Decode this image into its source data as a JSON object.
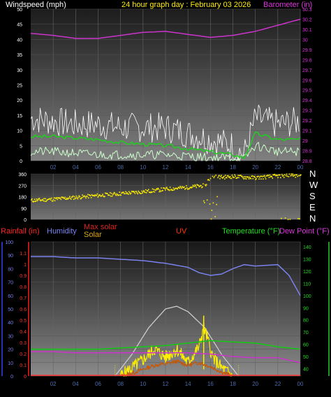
{
  "header": {
    "wind_label": "Windspeed (mph)",
    "title": "24 hour graph day : February 03 2026",
    "baro_label": "Barometer (in)"
  },
  "compass": [
    "N",
    "W",
    "S",
    "E",
    "N"
  ],
  "bottom_labels": {
    "rain": "Rainfall (in)",
    "humidity": "Humidity",
    "max_solar": "Max solar",
    "solar": "Solar",
    "uv": "UV",
    "temperature": "Temperature (°F)",
    "dewpoint": "Dew Point (°F)"
  },
  "colors": {
    "wind_gust": "#ffffff",
    "wind_avg": "#22cc22",
    "wind_low": "#ccffcc",
    "barometer": "#cc33cc",
    "direction": "#ffee00",
    "humidity": "#7a82ee",
    "temperature": "#11cc11",
    "dewpoint": "#cc33cc",
    "max_solar": "#cccccc",
    "solar": "#ffee00",
    "uv": "#cc5500",
    "rain": "#ff3333",
    "x_tick": "#4a6aa8"
  },
  "chart_data": [
    {
      "type": "line",
      "title": "24 hour graph day : February 03 2026",
      "x_ticks": [
        "02",
        "04",
        "06",
        "08",
        "10",
        "12",
        "14",
        "16",
        "18",
        "20",
        "22",
        "00"
      ],
      "y_left_label": "Windspeed (mph)",
      "y_left_ticks": [
        0,
        5,
        10,
        15,
        20,
        25,
        30,
        35,
        40,
        45,
        50
      ],
      "y_right_label": "Barometer (in)",
      "y_right_ticks": [
        28.8,
        28.9,
        29,
        29.1,
        29.2,
        29.3,
        29.4,
        29.5,
        29.6,
        29.7,
        29.8,
        29.9,
        30,
        30.1,
        30.2,
        30.3
      ],
      "series": [
        {
          "name": "Barometer (in)",
          "axis": "right",
          "x_hours": [
            0,
            2,
            4,
            6,
            8,
            10,
            12,
            14,
            16,
            18,
            20,
            22,
            24
          ],
          "values": [
            30.06,
            30.04,
            30.01,
            30.01,
            30.04,
            30.07,
            30.08,
            30.05,
            30.02,
            30.04,
            30.08,
            30.14,
            30.2
          ]
        },
        {
          "name": "Wind gust",
          "axis": "left",
          "x_hours": [
            0,
            2,
            4,
            6,
            8,
            10,
            12,
            14,
            16,
            18,
            19,
            20,
            22,
            24
          ],
          "values": [
            14,
            13,
            12,
            12,
            11,
            11,
            11,
            9,
            7,
            5,
            2,
            14,
            12,
            13
          ]
        },
        {
          "name": "Wind speed",
          "axis": "left",
          "x_hours": [
            0,
            2,
            4,
            6,
            8,
            10,
            12,
            14,
            16,
            18,
            19,
            20,
            22,
            24
          ],
          "values": [
            8,
            8,
            7.5,
            7,
            6,
            5.5,
            5,
            4,
            3,
            2,
            1,
            9,
            7,
            7
          ]
        },
        {
          "name": "Wind low",
          "axis": "left",
          "x_hours": [
            0,
            2,
            4,
            6,
            8,
            10,
            12,
            14,
            16,
            18,
            19,
            20,
            22,
            24
          ],
          "values": [
            3,
            3,
            2.5,
            2,
            2,
            2,
            2,
            1.5,
            1,
            1,
            0.5,
            5,
            3,
            3
          ]
        }
      ]
    },
    {
      "type": "scatter",
      "title": "",
      "x_ticks": [],
      "y_ticks": [
        0,
        90,
        180,
        270,
        360
      ],
      "series": [
        {
          "name": "Wind direction",
          "x_hours": [
            0,
            2,
            4,
            6,
            8,
            10,
            12,
            14,
            15.5,
            16,
            17,
            18,
            20,
            22,
            24
          ],
          "values": [
            150,
            160,
            175,
            190,
            205,
            220,
            240,
            255,
            270,
            345,
            335,
            340,
            330,
            345,
            350
          ]
        }
      ]
    },
    {
      "type": "line",
      "title": "",
      "x_ticks": [
        "02",
        "04",
        "06",
        "08",
        "10",
        "12",
        "14",
        "16",
        "18",
        "20",
        "22",
        "00"
      ],
      "y_left_label": "Humidity",
      "y_left_ticks": [
        0,
        10,
        20,
        30,
        40,
        50,
        60,
        70,
        80,
        90,
        100
      ],
      "y_rain_label": "Rainfall (in)",
      "y_rain_ticks": [
        0,
        0.1,
        0.2,
        0.3,
        0.4,
        0.5,
        0.6,
        0.7,
        0.8,
        0.9,
        1,
        1.1
      ],
      "y_right_label": "Temperature (°F)",
      "y_right_ticks": [
        40,
        50,
        60,
        70,
        80,
        90,
        100,
        110,
        120,
        130,
        140
      ],
      "series": [
        {
          "name": "Humidity",
          "axis": "left",
          "x_hours": [
            0,
            2,
            4,
            6,
            8,
            10,
            12,
            14,
            15,
            16,
            17,
            18,
            19,
            20,
            22,
            23,
            24
          ],
          "values": [
            89,
            89,
            88,
            88,
            87,
            86,
            84,
            81,
            77,
            75,
            76,
            80,
            83,
            82,
            83,
            75,
            60
          ]
        },
        {
          "name": "Temperature (°F)",
          "axis": "right",
          "x_hours": [
            0,
            2,
            4,
            6,
            8,
            10,
            12,
            14,
            16,
            18,
            20,
            22,
            24
          ],
          "values": [
            56,
            56,
            56,
            56,
            57,
            58,
            59,
            61,
            63,
            62,
            61,
            58,
            56
          ]
        },
        {
          "name": "Dew Point (°F)",
          "axis": "right",
          "x_hours": [
            0,
            2,
            4,
            6,
            8,
            10,
            12,
            14,
            16,
            18,
            20,
            22,
            24
          ],
          "values": [
            54,
            54,
            53,
            53,
            53,
            53,
            53,
            53,
            52,
            50,
            49,
            49,
            45
          ]
        },
        {
          "name": "Max solar",
          "axis": "left",
          "x_hours": [
            7.5,
            9,
            10.5,
            12,
            13,
            14,
            15.5,
            17,
            18.5
          ],
          "values": [
            0,
            16,
            36,
            50,
            52,
            48,
            36,
            16,
            0
          ]
        },
        {
          "name": "Solar",
          "axis": "left",
          "x_hours": [
            8,
            9,
            10,
            11,
            12,
            13,
            14,
            15,
            15.4,
            15.8,
            16.2,
            17,
            18
          ],
          "values": [
            0,
            6,
            12,
            20,
            14,
            20,
            10,
            22,
            37,
            26,
            14,
            6,
            0
          ]
        },
        {
          "name": "UV",
          "axis": "left",
          "x_hours": [
            8,
            9,
            10,
            11,
            12,
            13,
            14,
            15,
            16,
            17,
            18
          ],
          "values": [
            0,
            2,
            5,
            8,
            9,
            11,
            8,
            10,
            7,
            3,
            0
          ]
        },
        {
          "name": "Rainfall (in)",
          "axis": "rain",
          "x_hours": [
            0,
            24
          ],
          "values": [
            0,
            0
          ]
        }
      ]
    }
  ]
}
